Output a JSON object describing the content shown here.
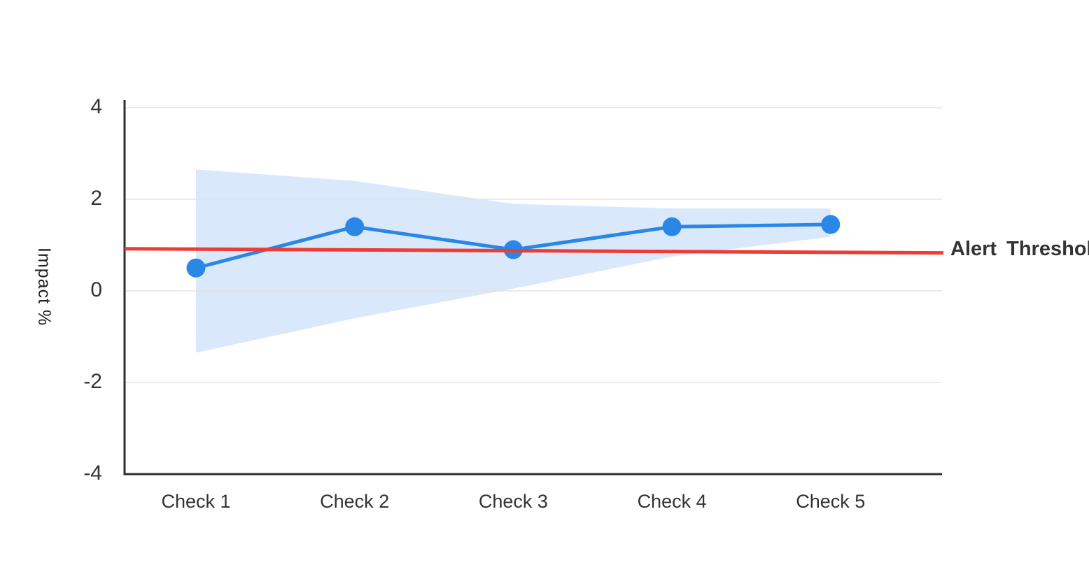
{
  "page": {
    "background": "#ffffff"
  },
  "chart_data": {
    "type": "line",
    "title": "",
    "categories": [
      "Check 1",
      "Check 2",
      "Check 3",
      "Check 4",
      "Check 5"
    ],
    "series": [
      {
        "name": "Impact %",
        "values": [
          0.5,
          1.4,
          0.9,
          1.4,
          1.45
        ],
        "color": "#2b87e6",
        "point_radius": 13.5,
        "line_width": 5
      }
    ],
    "band": {
      "name": "confidence-band",
      "upper": [
        2.65,
        2.4,
        1.9,
        1.8,
        1.8
      ],
      "lower": [
        -1.35,
        -0.6,
        0.05,
        0.75,
        1.18
      ],
      "color": "#d9e9fb"
    },
    "threshold": {
      "label": "Alert Threshold",
      "value_start": 0.92,
      "value_end": 0.83,
      "color": "#ef3b33",
      "line_width": 5
    },
    "ylabel": "Impact %",
    "yticks": [
      "4",
      "2",
      "0",
      "-2",
      "-4"
    ],
    "ytick_values": [
      4,
      2,
      0,
      -2,
      -4
    ],
    "ylim": [
      -4,
      4.17
    ],
    "grid": true,
    "legend_position": "none (threshold annotated at right)",
    "colors": {
      "axis": "#2e2e2e",
      "grid": "#e3e3e3",
      "tick_text": "#333333"
    }
  }
}
